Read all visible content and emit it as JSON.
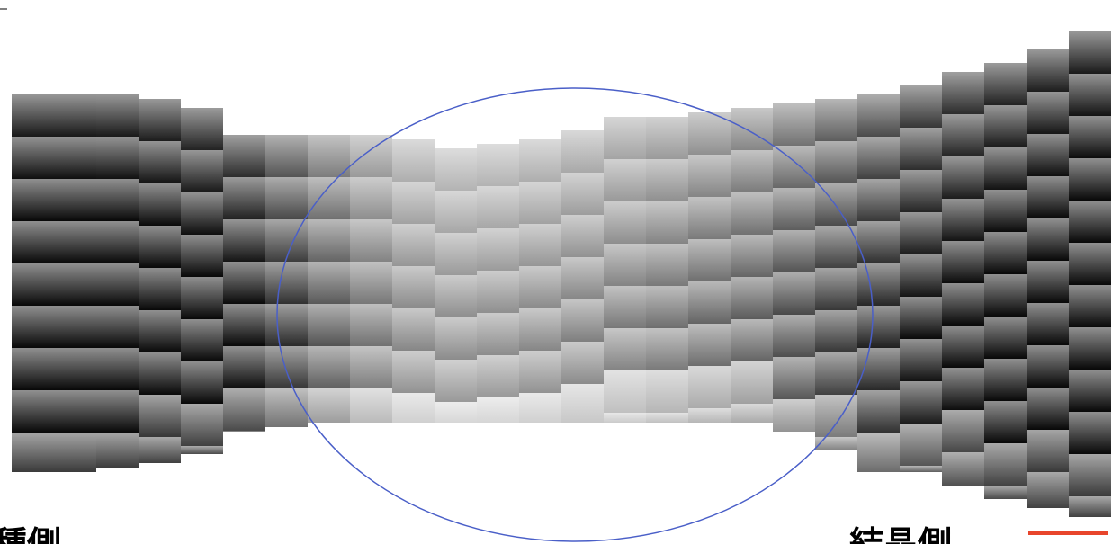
{
  "labels": {
    "left": "種側",
    "right": "結晶側"
  }
}
